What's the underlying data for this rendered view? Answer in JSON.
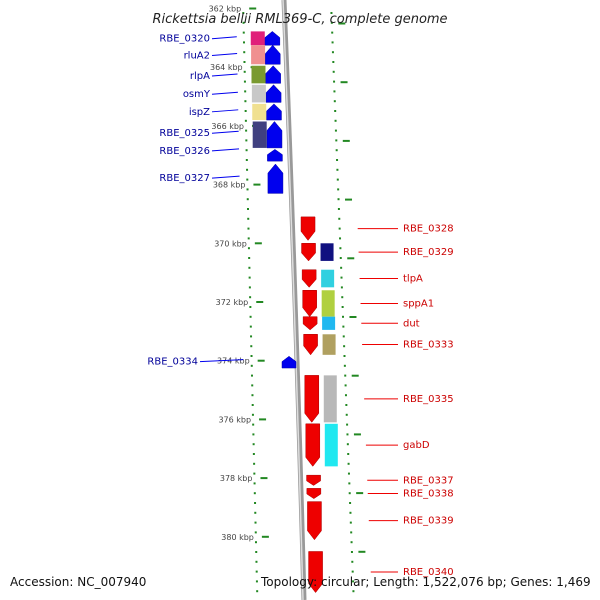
{
  "title": "Rickettsia bellii RML369-C, complete genome",
  "accession": "Accession: NC_007940",
  "topology": "Topology: circular; Length: 1,522,076 bp; Genes: 1,469",
  "colors": {
    "reverse_strand": "#0000ee",
    "forward_strand": "#ee0000",
    "backbone": "#999999",
    "tick": "#228822"
  },
  "kbp_ticks": [
    {
      "label": "362 kbp",
      "pos": 362.0
    },
    {
      "label": "364 kbp",
      "pos": 364.0
    },
    {
      "label": "366 kbp",
      "pos": 366.0
    },
    {
      "label": "368 kbp",
      "pos": 368.0
    },
    {
      "label": "370 kbp",
      "pos": 370.0
    },
    {
      "label": "372 kbp",
      "pos": 372.0
    },
    {
      "label": "374 kbp",
      "pos": 374.0
    },
    {
      "label": "376 kbp",
      "pos": 376.0
    },
    {
      "label": "378 kbp",
      "pos": 378.0
    },
    {
      "label": "380 kbp",
      "pos": 380.0
    }
  ],
  "reverse_genes": [
    {
      "name": "RBE_0320",
      "start": 362.78,
      "end": 363.25,
      "cog": "#e0207a"
    },
    {
      "name": "rluA2",
      "start": 363.25,
      "end": 363.9,
      "cog": "#f09090"
    },
    {
      "name": "rlpA",
      "start": 363.95,
      "end": 364.55,
      "cog": "#7a9a30"
    },
    {
      "name": "osmY",
      "start": 364.6,
      "end": 365.2,
      "cog": "#c8c8c8"
    },
    {
      "name": "ispZ",
      "start": 365.25,
      "end": 365.8,
      "cog": "#f0e090"
    },
    {
      "name": "RBE_0325",
      "start": 365.85,
      "end": 366.75,
      "cog": "#404080"
    },
    {
      "name": "RBE_0326",
      "start": 366.8,
      "end": 367.2,
      "cog": null
    },
    {
      "name": "RBE_0327",
      "start": 367.3,
      "end": 368.3,
      "cog": null
    },
    {
      "name": "RBE_0334",
      "start": 373.85,
      "end": 374.25,
      "cog": null
    }
  ],
  "forward_genes": [
    {
      "name": "RBE_0328",
      "start": 369.1,
      "end": 369.9,
      "cog": null
    },
    {
      "name": "RBE_0329",
      "start": 370.0,
      "end": 370.6,
      "cog": "#101080"
    },
    {
      "name": "tlpA",
      "start": 370.9,
      "end": 371.5,
      "cog": "#30d0e0"
    },
    {
      "name": "sppA1",
      "start": 371.6,
      "end": 372.5,
      "cog": "#b0d040"
    },
    {
      "name": "dut",
      "start": 372.5,
      "end": 372.95,
      "cog": "#20b8f0"
    },
    {
      "name": "RBE_0333",
      "start": 373.1,
      "end": 373.8,
      "cog": "#b0a060"
    },
    {
      "name": "RBE_0335",
      "start": 374.5,
      "end": 376.1,
      "cog": "#b8b8b8"
    },
    {
      "name": "gabD",
      "start": 376.15,
      "end": 377.6,
      "cog": "#20e8f0"
    },
    {
      "name": "RBE_0337",
      "start": 377.9,
      "end": 378.25,
      "cog": null
    },
    {
      "name": "RBE_0338",
      "start": 378.35,
      "end": 378.7,
      "cog": null
    },
    {
      "name": "RBE_0339",
      "start": 378.8,
      "end": 380.1,
      "cog": null
    },
    {
      "name": "RBE_0340",
      "start": 380.5,
      "end": 381.9,
      "cog": null
    }
  ],
  "reverse_label_positions": [
    {
      "name": "RBE_0320",
      "at": 363.03
    },
    {
      "name": "rluA2",
      "at": 363.6
    },
    {
      "name": "rlpA",
      "at": 364.3
    },
    {
      "name": "osmY",
      "at": 364.92
    },
    {
      "name": "ispZ",
      "at": 365.52
    },
    {
      "name": "RBE_0325",
      "at": 366.25
    },
    {
      "name": "RBE_0326",
      "at": 366.85
    },
    {
      "name": "RBE_0327",
      "at": 367.78
    },
    {
      "name": "RBE_0334",
      "at": 374.03
    }
  ]
}
